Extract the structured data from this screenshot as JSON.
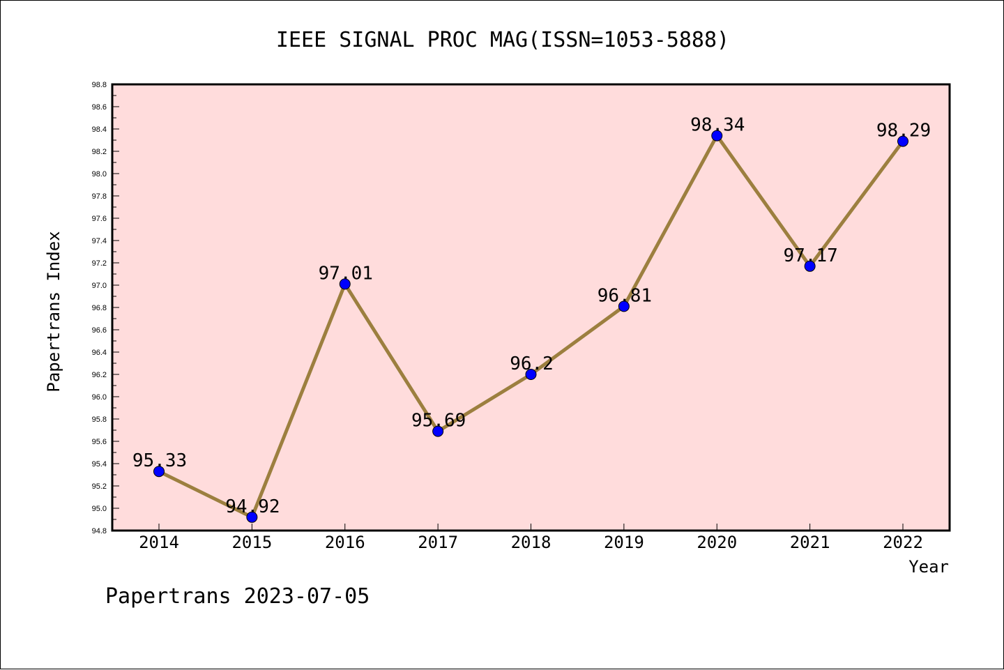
{
  "chart_data": {
    "type": "line",
    "title": "IEEE SIGNAL PROC MAG(ISSN=1053-5888)",
    "xlabel": "Year",
    "ylabel": "Papertrans Index",
    "x": [
      "2014",
      "2015",
      "2016",
      "2017",
      "2018",
      "2019",
      "2020",
      "2021",
      "2022"
    ],
    "values": [
      95.33,
      94.92,
      97.01,
      95.69,
      96.2,
      96.81,
      98.34,
      97.17,
      98.29
    ],
    "data_labels": [
      "95.33",
      "94.92",
      "97.01",
      "95.69",
      "96.2",
      "96.81",
      "98.34",
      "97.17",
      "98.29"
    ],
    "ylim": [
      94.8,
      98.8
    ],
    "yticks": [
      "94.8",
      "95.0",
      "95.2",
      "95.4",
      "95.6",
      "95.8",
      "96.0",
      "96.2",
      "96.4",
      "96.6",
      "96.8",
      "97.0",
      "97.2",
      "97.4",
      "97.6",
      "97.8",
      "98.0",
      "98.2",
      "98.4",
      "98.6",
      "98.8"
    ],
    "grid": false,
    "colors": {
      "plot_background": "#ffdcdc",
      "line": "#9c7f3f",
      "marker": "#0000ff"
    }
  },
  "footer": "Papertrans 2023-07-05"
}
